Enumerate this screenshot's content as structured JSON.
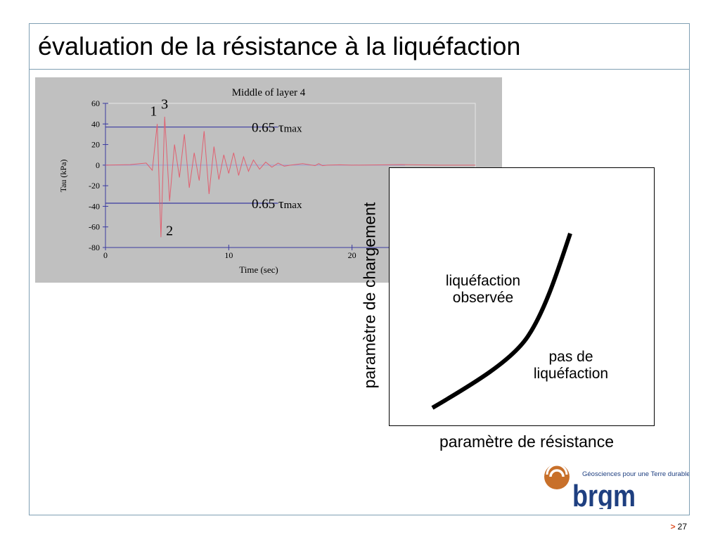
{
  "slide": {
    "title": "évaluation de la résistance à la liquéfaction",
    "page_number": "27",
    "page_marker": ">"
  },
  "logo": {
    "name": "brgm",
    "tagline": "Géosciences pour une Terre durable",
    "color": "#1e3f80",
    "accent": "#c8702a"
  },
  "chart_data": [
    {
      "type": "line",
      "title": "Middle of layer 4",
      "xlabel": "Time (sec)",
      "ylabel": "Tau (kPa)",
      "xlim": [
        0,
        30
      ],
      "ylim": [
        -80,
        60
      ],
      "x_ticks": [
        0,
        10,
        20
      ],
      "y_ticks": [
        60,
        40,
        20,
        0,
        -20,
        -40,
        -60,
        -80
      ],
      "series": [
        {
          "color": "#e06070",
          "x": [
            0,
            2,
            3.3,
            3.8,
            4.2,
            4.5,
            4.8,
            5.2,
            5.6,
            6,
            6.4,
            6.8,
            7.2,
            7.6,
            8,
            8.4,
            8.8,
            9.2,
            9.6,
            10,
            10.4,
            10.8,
            11.2,
            11.6,
            12,
            12.5,
            13,
            13.5,
            14,
            14.5,
            15,
            16,
            17,
            17.3,
            17.6,
            18,
            19,
            20,
            24,
            27,
            30
          ],
          "values": [
            0,
            0.5,
            2,
            -5,
            40,
            -70,
            47,
            -35,
            20,
            -12,
            30,
            -22,
            12,
            -15,
            33,
            -28,
            18,
            -14,
            10,
            -8,
            12,
            -10,
            8,
            -6,
            5,
            -4,
            3,
            -2,
            2,
            -1,
            0,
            1.5,
            -0.5,
            1.5,
            -0.5,
            0,
            0.3,
            0,
            0.5,
            0,
            0
          ]
        }
      ],
      "reference_lines": [
        {
          "value": 37,
          "label": "0.65 τmax",
          "label_text": "0.65 ",
          "label_symbol": "τ",
          "label_sub": "max",
          "color": "#3a3aa0"
        },
        {
          "value": -37,
          "label": "0.65 τmax",
          "label_text": "0.65 ",
          "label_symbol": "τ",
          "label_sub": "max",
          "color": "#3a3aa0"
        }
      ],
      "annotations": [
        {
          "text": "1",
          "x": 3.9,
          "y": 48
        },
        {
          "text": "3",
          "x": 4.8,
          "y": 55
        },
        {
          "text": "2",
          "x": 5.2,
          "y": -68
        }
      ],
      "grid": false,
      "background": "#c0c0c0"
    },
    {
      "type": "line",
      "xlabel": "paramètre de résistance",
      "ylabel": "paramètre de chargement",
      "regions": [
        {
          "text_lines": [
            "liquéfaction",
            "observée"
          ]
        },
        {
          "text_lines": [
            "pas de",
            "liquéfaction"
          ]
        }
      ],
      "line_color": "#000000"
    }
  ]
}
